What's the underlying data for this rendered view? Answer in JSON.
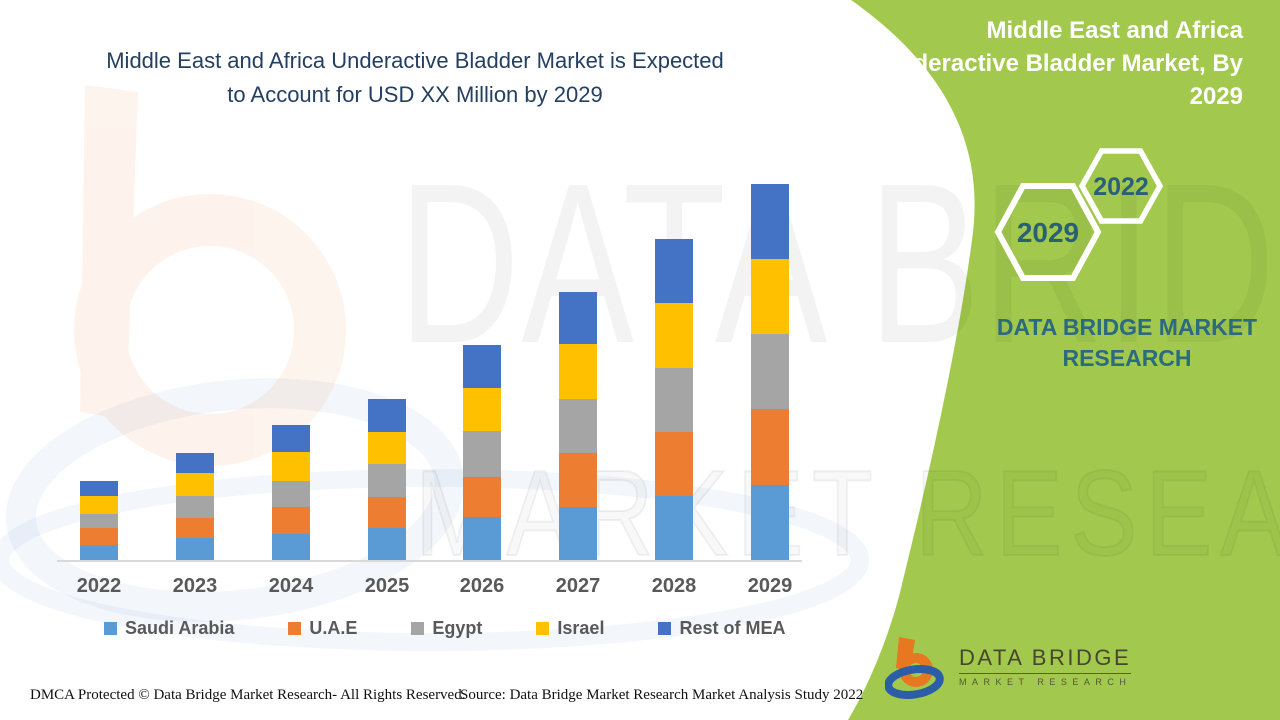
{
  "header": {
    "title_line1": "Middle East and Africa Underactive Bladder Market is Expected",
    "title_line2": "to Account for USD XX Million by 2029"
  },
  "side_panel": {
    "title_line1": "Middle East and Africa",
    "title_line2": "Underactive Bladder Market, By",
    "title_line3": "2029",
    "hexagon_back_year": "2022",
    "hexagon_front_year": "2029",
    "brand_line1": "DATA BRIDGE MARKET",
    "brand_line2": "RESEARCH",
    "accent_green": "#A2C94D",
    "teal": "#2C6A80"
  },
  "chart_data": {
    "type": "bar",
    "stacked": true,
    "title": "Middle East and Africa Underactive Bladder Market is Expected to Account for USD XX Million by 2029",
    "xlabel": "",
    "ylabel": "",
    "units": "relative estimated values (y-axis unlabeled; USD XX Million placeholder)",
    "ylim": [
      0,
      400
    ],
    "grid": false,
    "legend_position": "bottom",
    "categories": [
      "2022",
      "2023",
      "2024",
      "2025",
      "2026",
      "2027",
      "2028",
      "2029"
    ],
    "series": [
      {
        "name": "Saudi Arabia",
        "color": "#5B9BD5",
        "values": [
          15,
          22,
          26,
          32,
          43,
          53,
          64,
          75
        ]
      },
      {
        "name": "U.A.E",
        "color": "#ED7D31",
        "values": [
          17,
          20,
          27,
          31,
          40,
          54,
          64,
          76
        ]
      },
      {
        "name": "Egypt",
        "color": "#A5A5A5",
        "values": [
          14,
          22,
          26,
          33,
          46,
          54,
          64,
          75
        ]
      },
      {
        "name": "Israel",
        "color": "#FFC000",
        "values": [
          18,
          23,
          29,
          32,
          43,
          55,
          65,
          75
        ]
      },
      {
        "name": "Rest of MEA",
        "color": "#4472C4",
        "values": [
          15,
          20,
          27,
          33,
          43,
          52,
          64,
          75
        ]
      }
    ],
    "totals": [
      79,
      107,
      135,
      161,
      215,
      268,
      321,
      376
    ]
  },
  "watermarks": {
    "line1": "DATA BRIDGE",
    "line2": "MARKET RESEARCH"
  },
  "logo": {
    "name_text": "DATA BRIDGE",
    "sub_text": "MARKET RESEARCH"
  },
  "footer": {
    "dmca": "DMCA Protected © Data Bridge Market Research- All Rights Reserved.",
    "source": "Source: Data Bridge Market Research Market Analysis Study 2022"
  }
}
